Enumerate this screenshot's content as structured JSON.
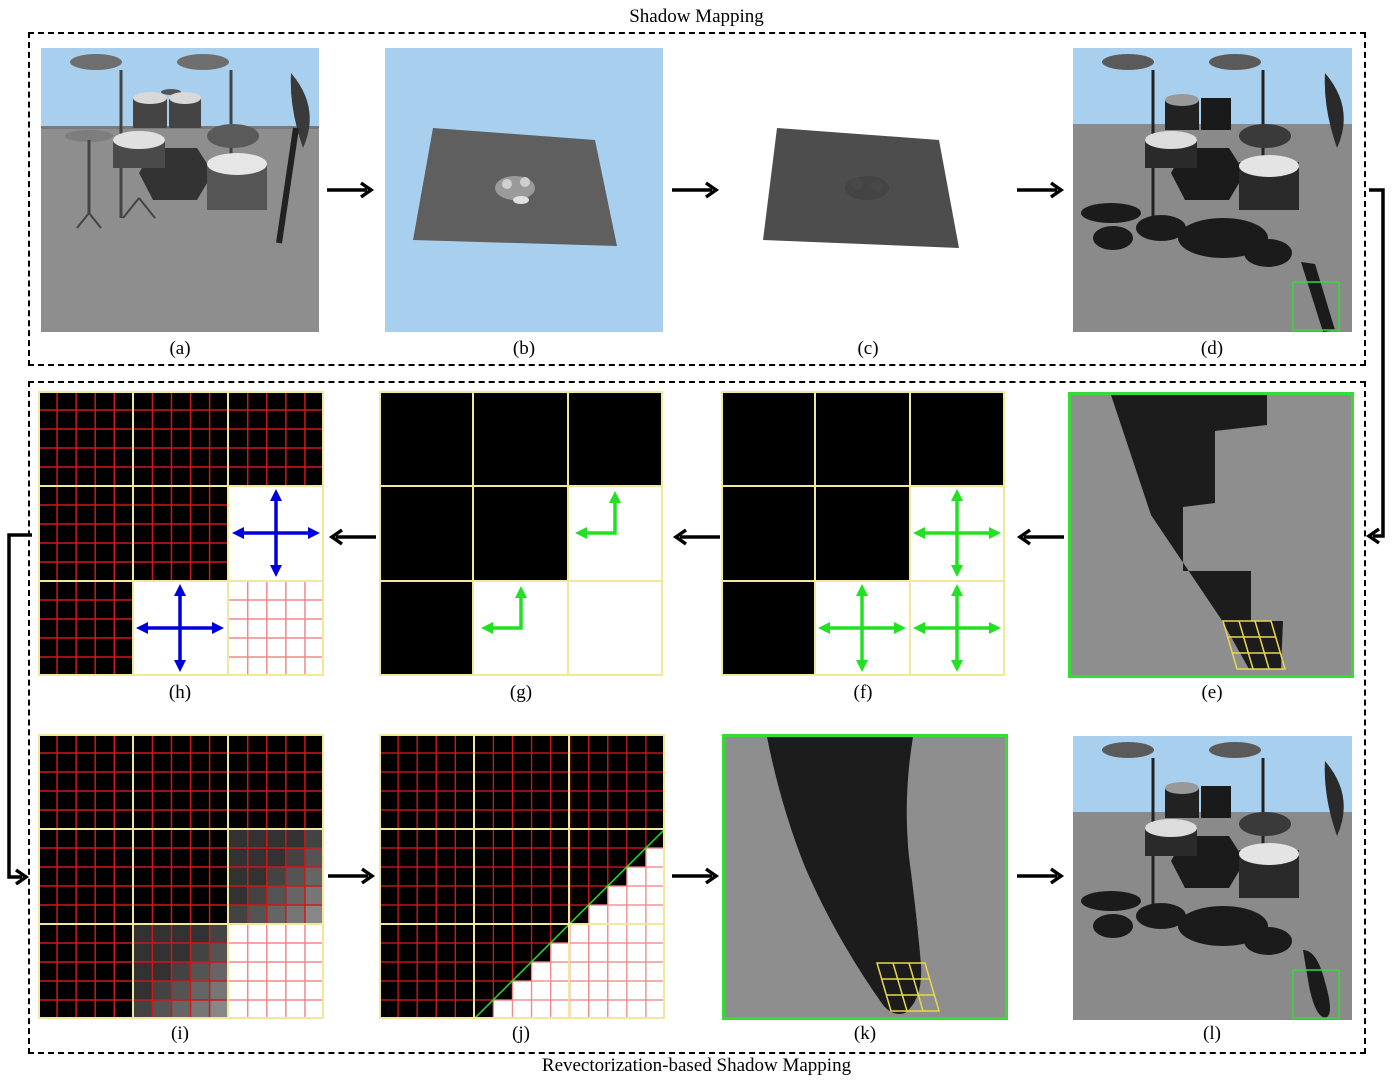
{
  "titles": {
    "top": "Shadow Mapping",
    "bottom": "Revectorization-based Shadow Mapping"
  },
  "captions": {
    "a": "(a)",
    "b": "(b)",
    "c": "(c)",
    "d": "(d)",
    "e": "(e)",
    "f": "(f)",
    "g": "(g)",
    "h": "(h)",
    "i": "(i)",
    "j": "(j)",
    "k": "(k)",
    "l": "(l)"
  },
  "colors": {
    "sky": "#a8d0ee",
    "floor": "#8a8a8a",
    "shadow": "#1c1c1c",
    "grid_red": "#d01818",
    "grid_pink": "#f08a8a",
    "block_border": "#f2e79a",
    "arrow_green": "#22e022",
    "arrow_blue": "#0000dd",
    "highlight_green": "#33dd33"
  }
}
